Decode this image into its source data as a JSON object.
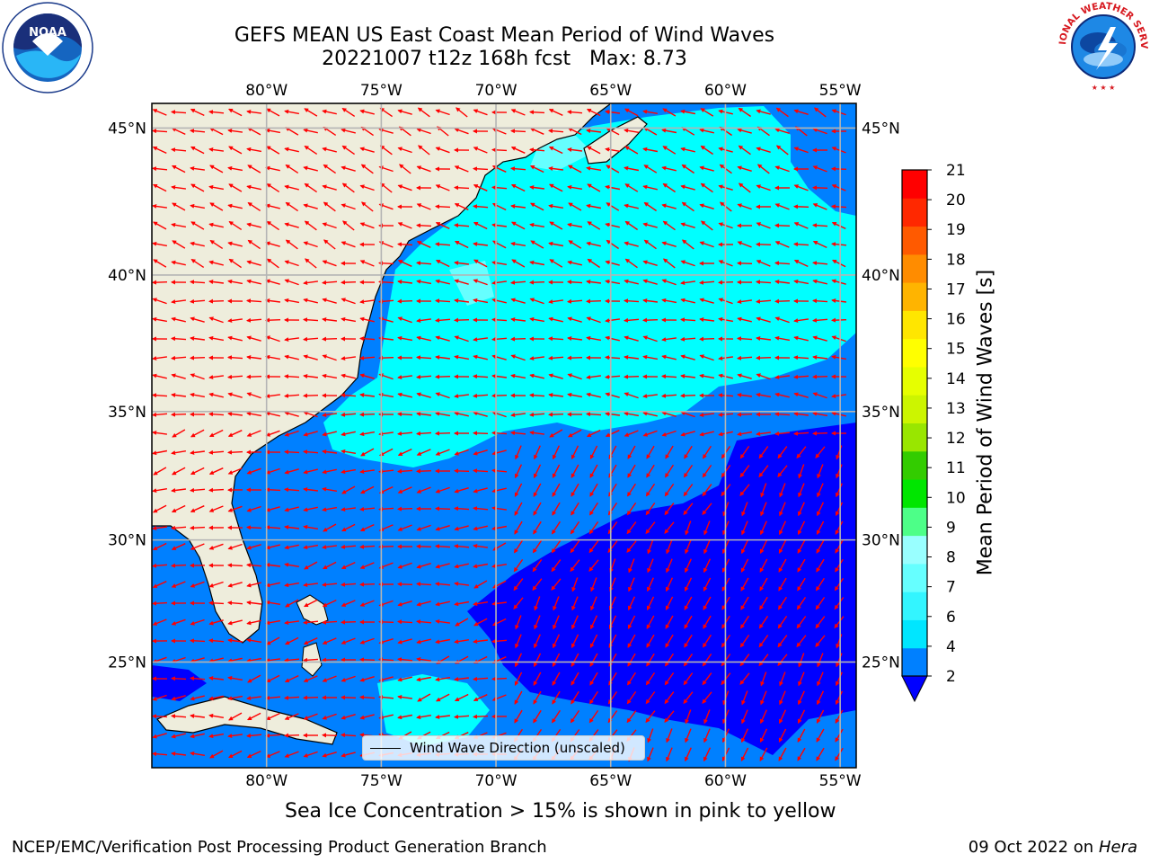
{
  "title": {
    "line1": "GEFS MEAN US East Coast Mean Period of Wind Waves",
    "line2": "20221007 t12z 168h fcst   Max: 8.73"
  },
  "map": {
    "lon_ticks": [
      "80°W",
      "75°W",
      "70°W",
      "65°W",
      "60°W",
      "55°W"
    ],
    "lat_ticks": [
      "45°N",
      "40°N",
      "35°N",
      "30°N",
      "25°N"
    ],
    "lon_values": [
      -80,
      -75,
      -70,
      -65,
      -60,
      -55
    ],
    "lat_values": [
      45,
      40,
      35,
      30,
      25
    ],
    "lon_range": [
      -85,
      -54.3
    ],
    "lat_range": [
      20.5,
      45.8
    ],
    "land_color": "#eeeddc",
    "grid_color": "#b4b4b4",
    "arrow_color": "#ff0000"
  },
  "colorbar": {
    "label": "Mean Period of Wind Waves [s]",
    "tick_labels": [
      "2",
      "4",
      "6",
      "7",
      "8",
      "9",
      "10",
      "11",
      "12",
      "13",
      "14",
      "15",
      "16",
      "17",
      "18",
      "19",
      "20",
      "21"
    ],
    "colors": [
      "#0080ff",
      "#00e6ff",
      "#33f5ff",
      "#66ffff",
      "#99ffff",
      "#4dff88",
      "#00e600",
      "#33cc00",
      "#99e600",
      "#ccf500",
      "#e6ff00",
      "#ffff00",
      "#ffe600",
      "#ffb400",
      "#ff8c00",
      "#ff5a00",
      "#ff2800",
      "#ff0000"
    ],
    "under_color": "#0000ff"
  },
  "legend": {
    "label": "Wind Wave Direction (unscaled)"
  },
  "ice_note": "Sea Ice Concentration > 15% is shown in pink to yellow",
  "footer": {
    "left": "NCEP/EMC/Verification Post Processing Product Generation Branch",
    "date": "09 Oct 2022 on",
    "machine": "Hera"
  },
  "logos": {
    "noaa_text": "NOAA",
    "nws_text": "NATIONAL WEATHER SERVICE"
  }
}
